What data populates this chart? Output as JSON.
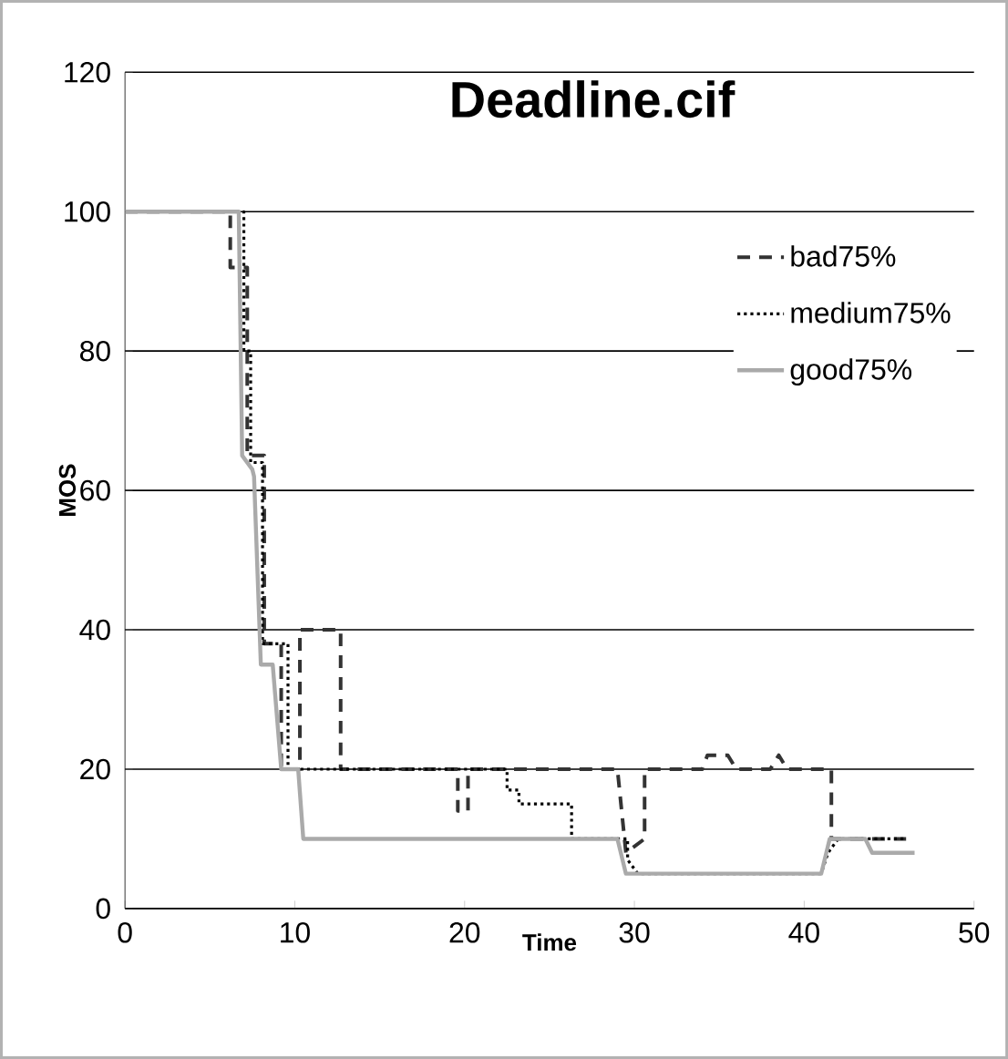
{
  "chart_data": {
    "type": "line",
    "title": "Deadline.cif",
    "xlabel": "Time",
    "ylabel": "MOS",
    "xlim": [
      0,
      50
    ],
    "xticks": [
      0,
      10,
      20,
      30,
      40,
      50
    ],
    "ylim": [
      0,
      120
    ],
    "yticks": [
      0,
      20,
      40,
      60,
      80,
      100,
      120
    ],
    "grid": "y",
    "legend": "top right",
    "marker": "none",
    "series": [
      {
        "name": "bad75%",
        "color": "#333333",
        "line_style": "dashed",
        "x": [
          0,
          6.2,
          6.2,
          7.2,
          7.2,
          8.2,
          8.2,
          9.2,
          9.2,
          10.3,
          10.3,
          12.7,
          12.7,
          19.6,
          19.6,
          20.2,
          20.2,
          29,
          29.5,
          30.6,
          30.6,
          34,
          34.3,
          35.5,
          36,
          38,
          38.5,
          39,
          41.6,
          41.6,
          46
        ],
        "values": [
          100,
          100,
          92,
          92,
          65,
          65,
          38,
          38,
          20,
          20,
          40,
          40,
          20,
          20,
          14,
          14,
          20,
          20,
          8,
          10,
          20,
          20,
          22,
          22,
          20,
          20,
          22,
          20,
          20,
          10,
          10
        ]
      },
      {
        "name": "medium75%",
        "color": "#000000",
        "line_style": "dotted",
        "x": [
          0,
          7.0,
          7.0,
          7.4,
          7.4,
          8.1,
          8.1,
          9.6,
          9.6,
          22.5,
          22.5,
          23.2,
          23.2,
          26.3,
          26.3,
          29.6,
          29.6,
          30.2,
          41,
          41.4,
          42,
          46
        ],
        "values": [
          100,
          100,
          80,
          80,
          64,
          64,
          38,
          38,
          20,
          20,
          17,
          17,
          15,
          15,
          10,
          10,
          7,
          5,
          5,
          8,
          10,
          10
        ]
      },
      {
        "name": "good75%",
        "color": "#aaaaaa",
        "line_style": "solid",
        "x": [
          0,
          6.7,
          6.9,
          7.5,
          7.6,
          8.0,
          8.7,
          9.2,
          10.2,
          10.5,
          29,
          29.5,
          41,
          41.5,
          43.6,
          44,
          46.5
        ],
        "values": [
          100,
          100,
          65,
          63,
          62,
          35,
          35,
          20,
          20,
          10,
          10,
          5,
          5,
          10,
          10,
          8,
          8
        ]
      }
    ]
  }
}
